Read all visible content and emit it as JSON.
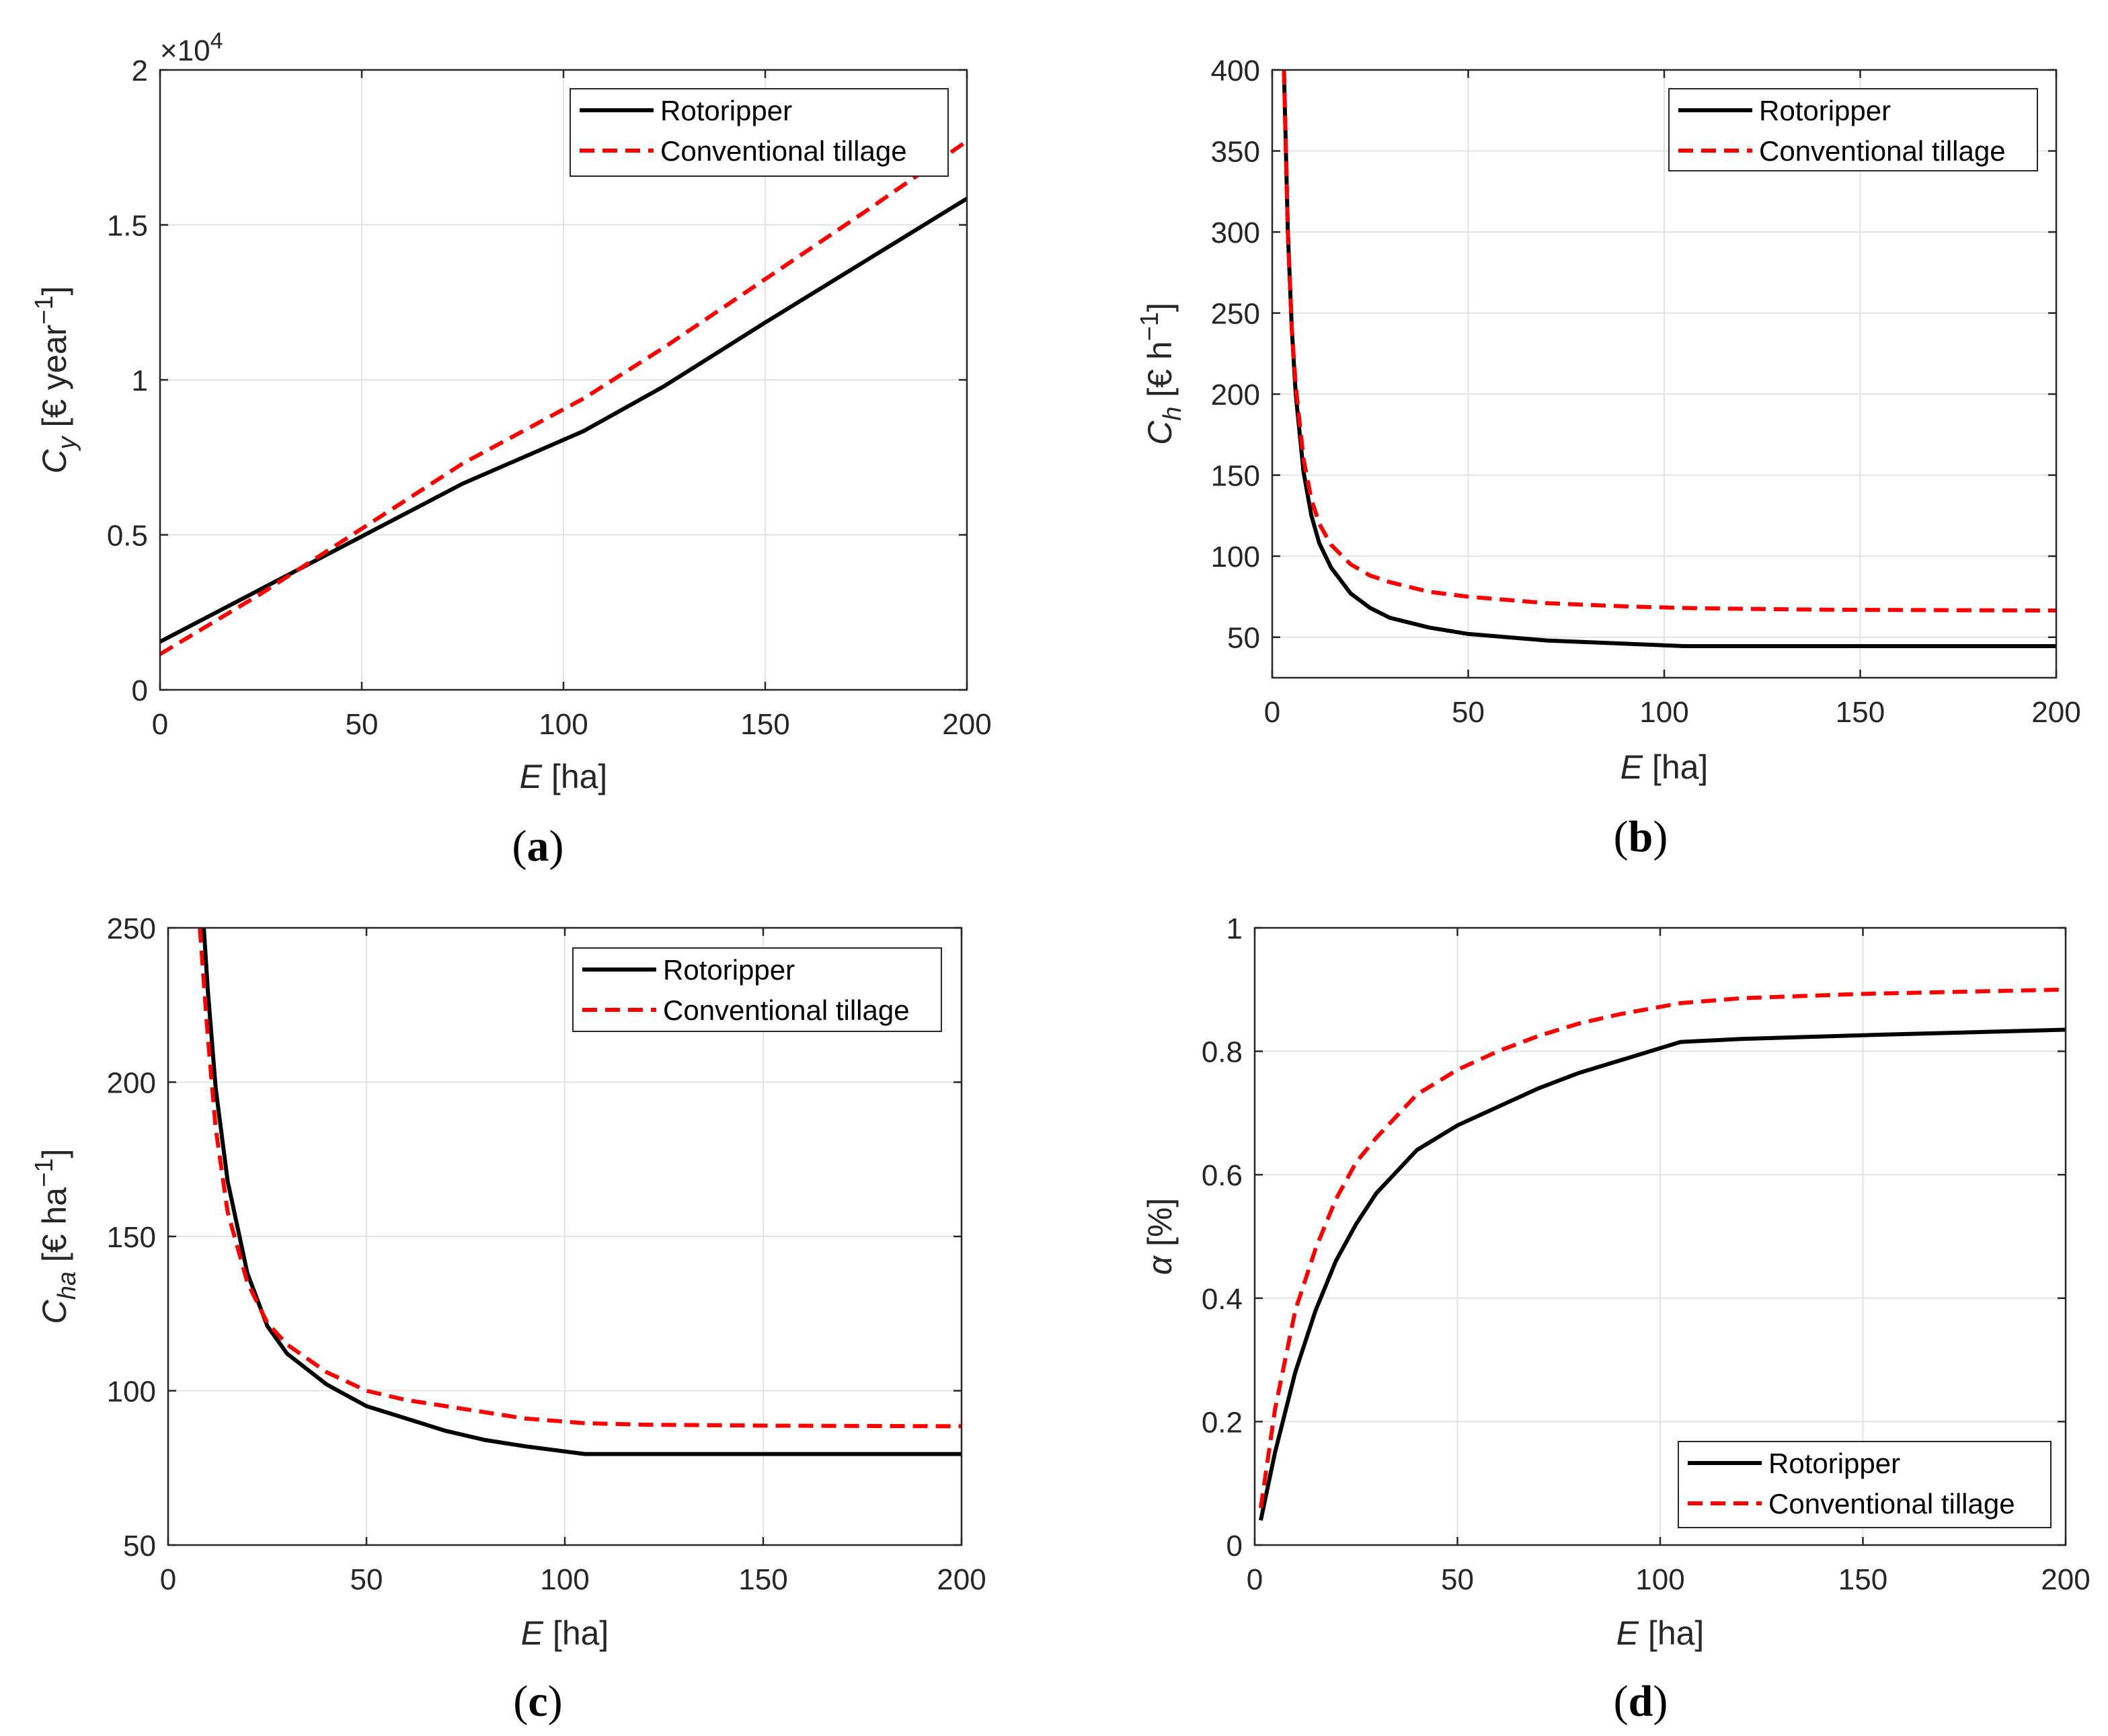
{
  "chart_data": [
    {
      "id": "a",
      "type": "line",
      "caption": "a",
      "xlabel_var": "E",
      "xlabel_unit": " [ha]",
      "ylabel_var": "C",
      "ylabel_sub": "y",
      "ylabel_unit": " [€ year",
      "ylabel_sup": "−1",
      "ylabel_close": "]",
      "xlim": [
        0,
        200
      ],
      "ylim": [
        0,
        20000
      ],
      "xticks": [
        0,
        50,
        100,
        150,
        200
      ],
      "xtick_labels": [
        "0",
        "50",
        "100",
        "150",
        "200"
      ],
      "yticks": [
        0,
        5000,
        10000,
        15000,
        20000
      ],
      "ytick_labels": [
        "0",
        "0.5",
        "1",
        "1.5",
        "2"
      ],
      "exponent_base": "×10",
      "exponent_power": "4",
      "legend_position": "top-right",
      "series": [
        {
          "name": "Rotoripper",
          "color": "#000000",
          "dash": "solid",
          "x": [
            0,
            25,
            50,
            75,
            105,
            125,
            150,
            175,
            200
          ],
          "y": [
            1550,
            3250,
            4950,
            6650,
            8350,
            9800,
            11850,
            13850,
            15850
          ]
        },
        {
          "name": "Conventional tillage",
          "color": "#ff0000",
          "dash": "dashed",
          "x": [
            0,
            25,
            50,
            75,
            105,
            125,
            150,
            175,
            200
          ],
          "y": [
            1150,
            3100,
            5200,
            7300,
            9400,
            11050,
            13250,
            15450,
            17700
          ]
        }
      ]
    },
    {
      "id": "b",
      "type": "line",
      "caption": "b",
      "xlabel_var": "E",
      "xlabel_unit": " [ha]",
      "ylabel_var": "C",
      "ylabel_sub": "h",
      "ylabel_unit": " [€ h",
      "ylabel_sup": "−1",
      "ylabel_close": "]",
      "xlim": [
        0,
        200
      ],
      "ylim": [
        25,
        400
      ],
      "xticks": [
        0,
        50,
        100,
        150,
        200
      ],
      "xtick_labels": [
        "0",
        "50",
        "100",
        "150",
        "200"
      ],
      "yticks": [
        50,
        100,
        150,
        200,
        250,
        300,
        350,
        400
      ],
      "ytick_labels": [
        "50",
        "100",
        "150",
        "200",
        "250",
        "300",
        "350",
        "400"
      ],
      "legend_position": "top-right",
      "series": [
        {
          "name": "Rotoripper",
          "color": "#000000",
          "dash": "solid",
          "x": [
            3,
            4,
            5,
            6,
            8,
            10,
            12,
            15,
            20,
            25,
            30,
            40,
            50,
            60,
            70,
            80,
            90,
            105,
            120,
            140,
            160,
            180,
            200
          ],
          "y": [
            400,
            300,
            240,
            200,
            152,
            125,
            108,
            93,
            77,
            68,
            62,
            56,
            52,
            50,
            48,
            47,
            46,
            44.5,
            44.5,
            44.5,
            44.5,
            44.5,
            44.5
          ]
        },
        {
          "name": "Conventional tillage",
          "color": "#ff0000",
          "dash": "dashed",
          "x": [
            3,
            4,
            5,
            6,
            8,
            10,
            12,
            15,
            20,
            25,
            30,
            40,
            50,
            60,
            70,
            80,
            90,
            105,
            120,
            140,
            160,
            180,
            200
          ],
          "y": [
            400,
            300,
            240,
            205,
            160,
            135,
            120,
            107,
            95,
            88,
            84,
            78,
            75,
            73,
            71,
            70,
            69,
            68,
            67.5,
            67,
            66.8,
            66.6,
            66.5
          ]
        }
      ]
    },
    {
      "id": "c",
      "type": "line",
      "caption": "c",
      "xlabel_var": "E",
      "xlabel_unit": " [ha]",
      "ylabel_var": "C",
      "ylabel_sub": "ha",
      "ylabel_unit": " [€ ha",
      "ylabel_sup": "−1",
      "ylabel_close": "]",
      "xlim": [
        0,
        200
      ],
      "ylim": [
        50,
        250
      ],
      "xticks": [
        0,
        50,
        100,
        150,
        200
      ],
      "xtick_labels": [
        "0",
        "50",
        "100",
        "150",
        "200"
      ],
      "yticks": [
        50,
        100,
        150,
        200,
        250
      ],
      "ytick_labels": [
        "50",
        "100",
        "150",
        "200",
        "250"
      ],
      "legend_position": "top-right",
      "series": [
        {
          "name": "Rotoripper",
          "color": "#000000",
          "dash": "solid",
          "x": [
            9,
            10,
            12,
            15,
            20,
            25,
            30,
            40,
            50,
            60,
            70,
            80,
            90,
            105,
            120,
            150,
            200
          ],
          "y": [
            250,
            230,
            198,
            168,
            138,
            121,
            112,
            102,
            95,
            91,
            87,
            84,
            82,
            79.5,
            79.5,
            79.5,
            79.5
          ]
        },
        {
          "name": "Conventional tillage",
          "color": "#ff0000",
          "dash": "dashed",
          "x": [
            8,
            10,
            12,
            15,
            20,
            25,
            30,
            40,
            50,
            60,
            70,
            80,
            90,
            105,
            120,
            150,
            200
          ],
          "y": [
            250,
            215,
            185,
            158,
            135,
            122,
            115,
            106,
            100,
            97,
            95,
            93,
            91,
            89.5,
            89,
            88.7,
            88.5
          ]
        }
      ]
    },
    {
      "id": "d",
      "type": "line",
      "caption": "d",
      "xlabel_var": "E",
      "xlabel_unit": " [ha]",
      "ylabel_var": "α",
      "ylabel_sub": "",
      "ylabel_unit": " [%]",
      "ylabel_sup": "",
      "ylabel_close": "",
      "xlim": [
        0,
        200
      ],
      "ylim": [
        0,
        1
      ],
      "xticks": [
        0,
        50,
        100,
        150,
        200
      ],
      "xtick_labels": [
        "0",
        "50",
        "100",
        "150",
        "200"
      ],
      "yticks": [
        0,
        0.2,
        0.4,
        0.6,
        0.8,
        1
      ],
      "ytick_labels": [
        "0",
        "0.2",
        "0.4",
        "0.6",
        "0.8",
        "1"
      ],
      "legend_position": "bottom-right",
      "series": [
        {
          "name": "Rotoripper",
          "color": "#000000",
          "dash": "solid",
          "x": [
            1.5,
            5,
            10,
            15,
            20,
            25,
            30,
            40,
            50,
            60,
            70,
            80,
            90,
            105,
            120,
            150,
            200
          ],
          "y": [
            0.04,
            0.15,
            0.28,
            0.38,
            0.46,
            0.52,
            0.57,
            0.64,
            0.68,
            0.71,
            0.74,
            0.765,
            0.785,
            0.815,
            0.82,
            0.826,
            0.835
          ]
        },
        {
          "name": "Conventional tillage",
          "color": "#ff0000",
          "dash": "dashed",
          "x": [
            1.5,
            5,
            10,
            15,
            20,
            25,
            30,
            40,
            50,
            60,
            70,
            80,
            90,
            105,
            120,
            150,
            200
          ],
          "y": [
            0.06,
            0.22,
            0.38,
            0.48,
            0.56,
            0.62,
            0.66,
            0.73,
            0.77,
            0.8,
            0.825,
            0.845,
            0.86,
            0.878,
            0.886,
            0.893,
            0.9
          ]
        }
      ]
    }
  ]
}
